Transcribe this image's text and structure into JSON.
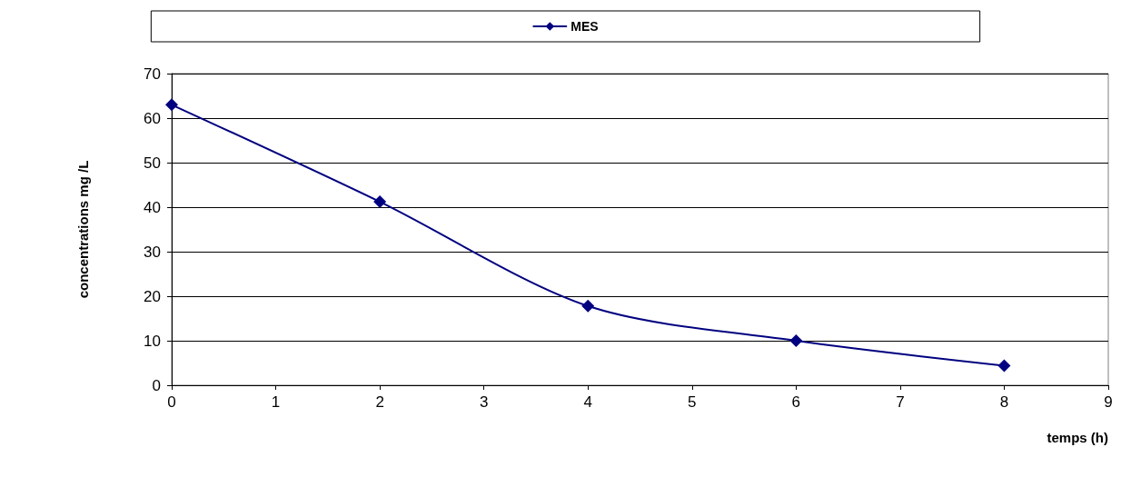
{
  "chart_data": {
    "type": "line",
    "xlabel": "temps (h)",
    "ylabel": "concentrations mg /L",
    "x": [
      0,
      2,
      4,
      6,
      8
    ],
    "series": [
      {
        "name": "MES",
        "color": "#000080",
        "values": [
          63,
          41.2,
          17.8,
          10,
          4.4
        ]
      }
    ],
    "xlim": [
      0,
      9
    ],
    "xticks": [
      0,
      1,
      2,
      3,
      4,
      5,
      6,
      7,
      8,
      9
    ],
    "ylim": [
      0,
      70
    ],
    "yticks": [
      0,
      10,
      20,
      30,
      40,
      50,
      60,
      70
    ],
    "grid": "y",
    "legend": "top",
    "marker": "diamond",
    "line_style": "solid"
  }
}
